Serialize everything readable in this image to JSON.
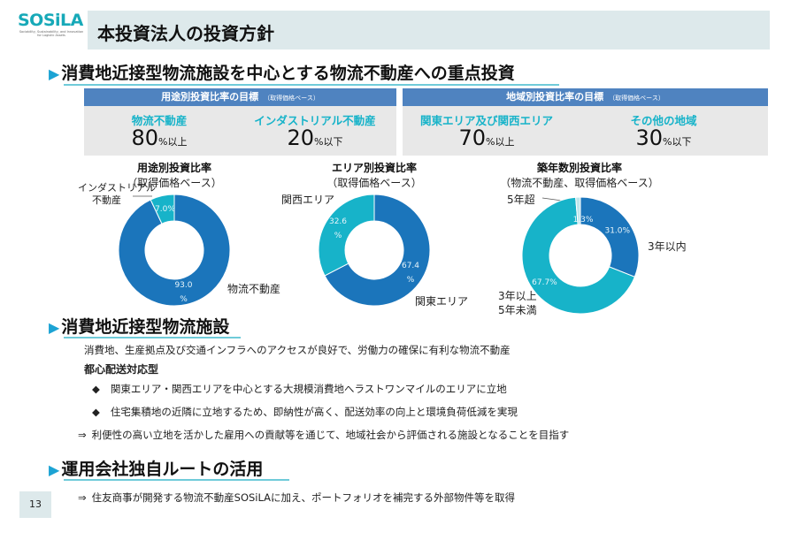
{
  "logo": {
    "text": "SOSiLA",
    "tagline": "Sociability, Sustainability, and Innovation for Logistic Assets"
  },
  "header": {
    "title": "本投資法人の投資方針"
  },
  "section1": {
    "heading": "消費地近接型物流施設を中心とする物流不動産への重点投資"
  },
  "targets": [
    {
      "title": "用途別投資比率の目標",
      "note": "（取得価格ベース）",
      "items": [
        {
          "label": "物流不動産",
          "value": "80",
          "suffix": "%以上"
        },
        {
          "label": "インダストリアル不動産",
          "value": "20",
          "suffix": "%以下"
        }
      ]
    },
    {
      "title": "地域別投資比率の目標",
      "note": "（取得価格ベース）",
      "items": [
        {
          "label": "関東エリア及び関西エリア",
          "value": "70",
          "suffix": "%以上"
        },
        {
          "label": "その他の地域",
          "value": "30",
          "suffix": "%以下"
        }
      ]
    }
  ],
  "colors": {
    "dark_blue": "#1b75bb",
    "cyan": "#17b3c9",
    "light_cyan": "#bfe6ec",
    "accent": "#1ca3d4"
  },
  "chart_data": [
    {
      "type": "pie",
      "title": "用途別投資比率",
      "subtitle": "（取得価格ベース）",
      "slices": [
        {
          "name": "物流不動産",
          "value": 93.0,
          "data_label": "93.0 %",
          "color": "#1b75bb"
        },
        {
          "name": "インダストリアル不動産",
          "value": 7.0,
          "data_label": "7.0%",
          "color": "#17b3c9"
        }
      ]
    },
    {
      "type": "pie",
      "title": "エリア別投資比率",
      "subtitle": "（取得価格ベース）",
      "slices": [
        {
          "name": "関東エリア",
          "value": 67.4,
          "data_label": "67.4 %",
          "color": "#1b75bb"
        },
        {
          "name": "関西エリア",
          "value": 32.6,
          "data_label": "32.6 %",
          "color": "#17b3c9"
        }
      ]
    },
    {
      "type": "pie",
      "title": "築年数別投資比率",
      "subtitle": "（物流不動産、取得価格ベース）",
      "slices": [
        {
          "name": "3年以内",
          "value": 31.0,
          "data_label": "31.0%",
          "color": "#1b75bb"
        },
        {
          "name": "3年以上 5年未満",
          "value": 67.7,
          "data_label": "67.7%",
          "color": "#17b3c9"
        },
        {
          "name": "5年超",
          "value": 1.3,
          "data_label": "1.3%",
          "color": "#bfe6ec"
        }
      ]
    }
  ],
  "chart_labels": {
    "c0": {
      "a": "インダストリアル",
      "b": "不動産",
      "c": "物流不動産"
    },
    "c1": {
      "a": "関西エリア",
      "b": "関東エリア"
    },
    "c2": {
      "a": "5年超",
      "b": "3年以内",
      "c": "3年以上",
      "d": "5年未満"
    }
  },
  "section2": {
    "heading": "消費地近接型物流施設",
    "desc": "消費地、生産拠点及び交通インフラへのアクセスが良好で、労働力の確保に有利な物流不動産",
    "subheading": "都心配送対応型",
    "bullets": [
      "関東エリア・関西エリアを中心とする大規模消費地へラストワンマイルのエリアに立地",
      "住宅集積地の近隣に立地するため、即納性が高く、配送効率の向上と環境負荷低減を実現"
    ],
    "bullet_symbol": "◆",
    "arrow": "⇒",
    "conclusion": "利便性の高い立地を活かした雇用への貢献等を通じて、地域社会から評価される施設となることを目指す"
  },
  "section3": {
    "heading": "運用会社独自ルートの活用",
    "arrow": "⇒",
    "text": "住友商事が開発する物流不動産SOSiLAに加え、ポートフォリオを補完する外部物件等を取得"
  },
  "page_number": "13"
}
